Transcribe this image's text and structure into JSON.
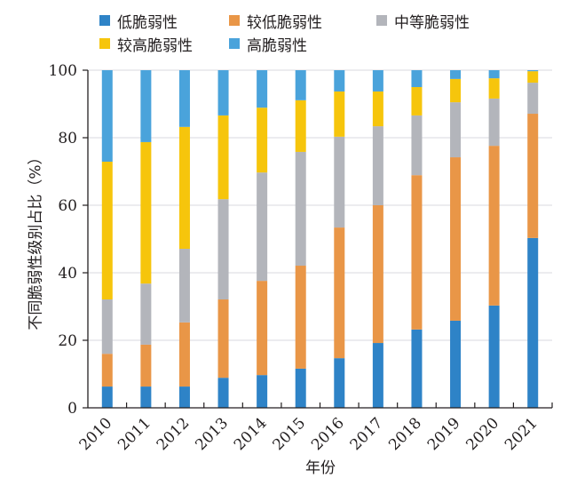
{
  "chart_data": {
    "type": "bar",
    "stacked": true,
    "title": "",
    "xlabel": "年份",
    "ylabel": "不同脆弱性级别占比（%）",
    "ylim": [
      0,
      100
    ],
    "yticks": [
      "0",
      "20",
      "40",
      "60",
      "80",
      "100"
    ],
    "grid": true,
    "legend_position": "top",
    "categories": [
      "2010",
      "2011",
      "2012",
      "2013",
      "2014",
      "2015",
      "2016",
      "2017",
      "2018",
      "2019",
      "2020",
      "2021"
    ],
    "series": [
      {
        "name": "低脆弱性",
        "color": "#2e83c7",
        "values": [
          6.3,
          6.3,
          6.3,
          8.9,
          9.7,
          11.6,
          14.7,
          19.2,
          23.2,
          25.8,
          30.3,
          50.3
        ]
      },
      {
        "name": "较低脆弱性",
        "color": "#e99647",
        "values": [
          9.7,
          12.4,
          19.0,
          23.2,
          27.9,
          30.5,
          38.7,
          40.8,
          45.7,
          48.4,
          47.3,
          36.8
        ]
      },
      {
        "name": "中等脆弱性",
        "color": "#b3b5bb",
        "values": [
          16.1,
          18.1,
          21.8,
          29.7,
          32.1,
          33.7,
          26.9,
          23.4,
          17.7,
          16.3,
          14.0,
          9.2
        ]
      },
      {
        "name": "较高脆弱性",
        "color": "#f6c50c",
        "values": [
          40.8,
          41.9,
          36.1,
          24.8,
          19.2,
          15.3,
          13.4,
          10.3,
          8.4,
          6.9,
          6.0,
          3.4
        ]
      },
      {
        "name": "高脆弱性",
        "color": "#4aa3db",
        "values": [
          27.1,
          21.3,
          16.8,
          13.4,
          11.1,
          8.9,
          6.3,
          6.3,
          5.0,
          2.6,
          2.4,
          0.3
        ]
      }
    ]
  }
}
